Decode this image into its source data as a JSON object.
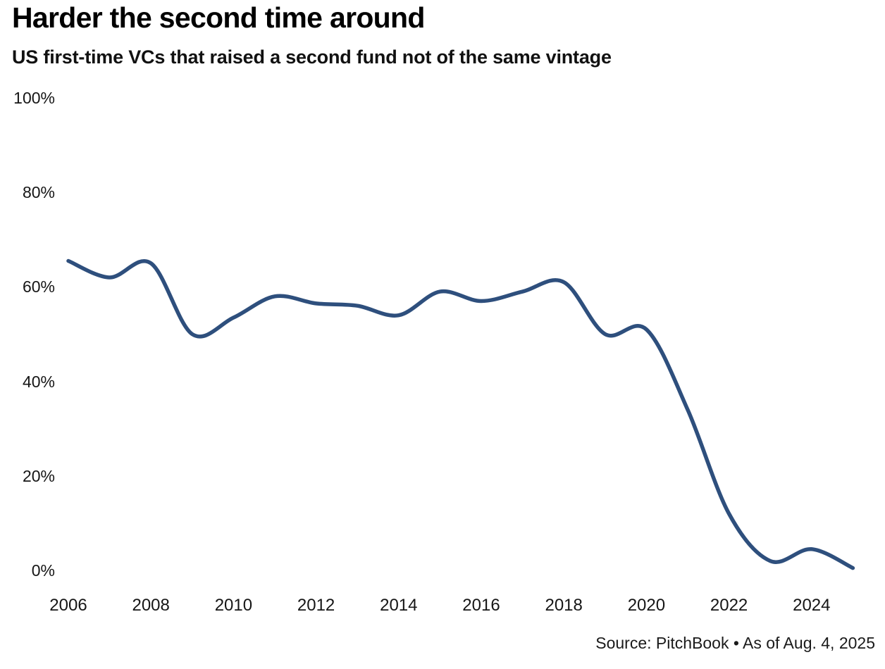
{
  "source": "Source: PitchBook • As of Aug. 4, 2025",
  "colors": {
    "line": "#2e4f7d",
    "title": "#000000",
    "text": "#161616"
  },
  "chart_data": {
    "type": "line",
    "title": "Harder the second time around",
    "subtitle": "US first-time VCs that raised a second fund not of the same vintage",
    "x": [
      2006,
      2007,
      2008,
      2009,
      2010,
      2011,
      2012,
      2013,
      2014,
      2015,
      2016,
      2017,
      2018,
      2019,
      2020,
      2021,
      2022,
      2023,
      2024,
      2025
    ],
    "series": [
      {
        "name": "Share of US first-time VCs that raised a second fund",
        "values": [
          65.5,
          62,
          65,
          50,
          53.5,
          58,
          56.5,
          56,
          54,
          59,
          57,
          59,
          61,
          50,
          51,
          34,
          12,
          2,
          4.5,
          0.5
        ]
      }
    ],
    "units": "%",
    "ylim": [
      0,
      100
    ],
    "xlim": [
      2006,
      2025
    ],
    "y_ticks": [
      "0%",
      "20%",
      "40%",
      "60%",
      "80%",
      "100%"
    ],
    "y_tick_values": [
      0,
      20,
      40,
      60,
      80,
      100
    ],
    "x_ticks": [
      2006,
      2008,
      2010,
      2012,
      2014,
      2016,
      2018,
      2020,
      2022,
      2024
    ],
    "grid": false,
    "legend": false,
    "line_smoothing": true
  }
}
